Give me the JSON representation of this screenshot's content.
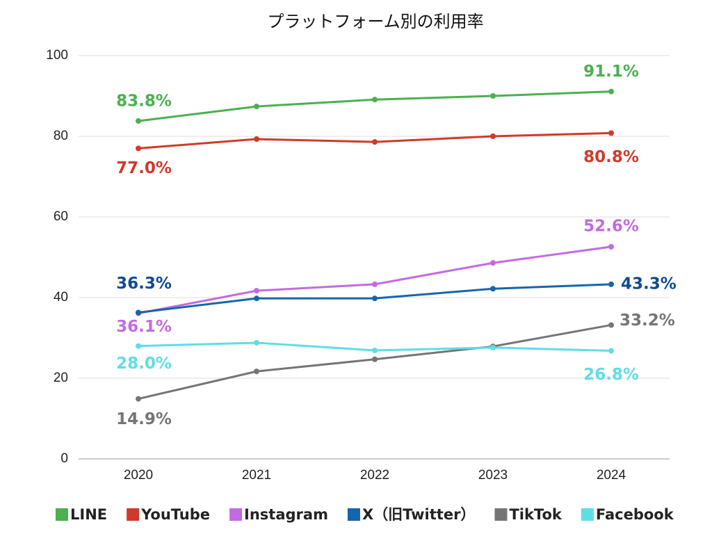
{
  "chart_data": {
    "type": "line",
    "title": "プラットフォーム別の利用率",
    "categories": [
      "2020",
      "2021",
      "2022",
      "2023",
      "2024"
    ],
    "ylim": [
      0,
      100
    ],
    "yticks": [
      0,
      20,
      40,
      60,
      80,
      100
    ],
    "grid": true,
    "legend": "bottom",
    "series": [
      {
        "name": "LINE",
        "color": "#4caf50",
        "values": [
          83.8,
          87.4,
          89.1,
          90.0,
          91.1
        ],
        "value_labels": [
          "83.8%",
          null,
          null,
          null,
          "91.1%"
        ]
      },
      {
        "name": "YouTube",
        "color": "#d03a2a",
        "values": [
          77.0,
          79.3,
          78.6,
          80.0,
          80.8
        ],
        "value_labels": [
          "77.0%",
          null,
          null,
          null,
          "80.8%"
        ]
      },
      {
        "name": "Instagram",
        "color": "#c36ae0",
        "values": [
          36.1,
          41.7,
          43.3,
          48.6,
          52.6
        ],
        "value_labels": [
          "36.1%",
          null,
          null,
          null,
          "52.6%"
        ]
      },
      {
        "name": "X（旧Twitter）",
        "color": "#1566ad",
        "values": [
          36.3,
          39.8,
          39.8,
          42.2,
          43.3
        ],
        "value_labels": [
          "36.3%",
          null,
          null,
          null,
          "43.3%"
        ]
      },
      {
        "name": "TikTok",
        "color": "#757575",
        "values": [
          14.9,
          21.7,
          24.7,
          27.9,
          33.2
        ],
        "value_labels": [
          "14.9%",
          null,
          null,
          null,
          "33.2%"
        ]
      },
      {
        "name": "Facebook",
        "color": "#5fdde5",
        "values": [
          28.0,
          28.8,
          26.9,
          27.6,
          26.8
        ],
        "value_labels": [
          "28.0%",
          null,
          null,
          null,
          "26.8%"
        ]
      }
    ]
  }
}
